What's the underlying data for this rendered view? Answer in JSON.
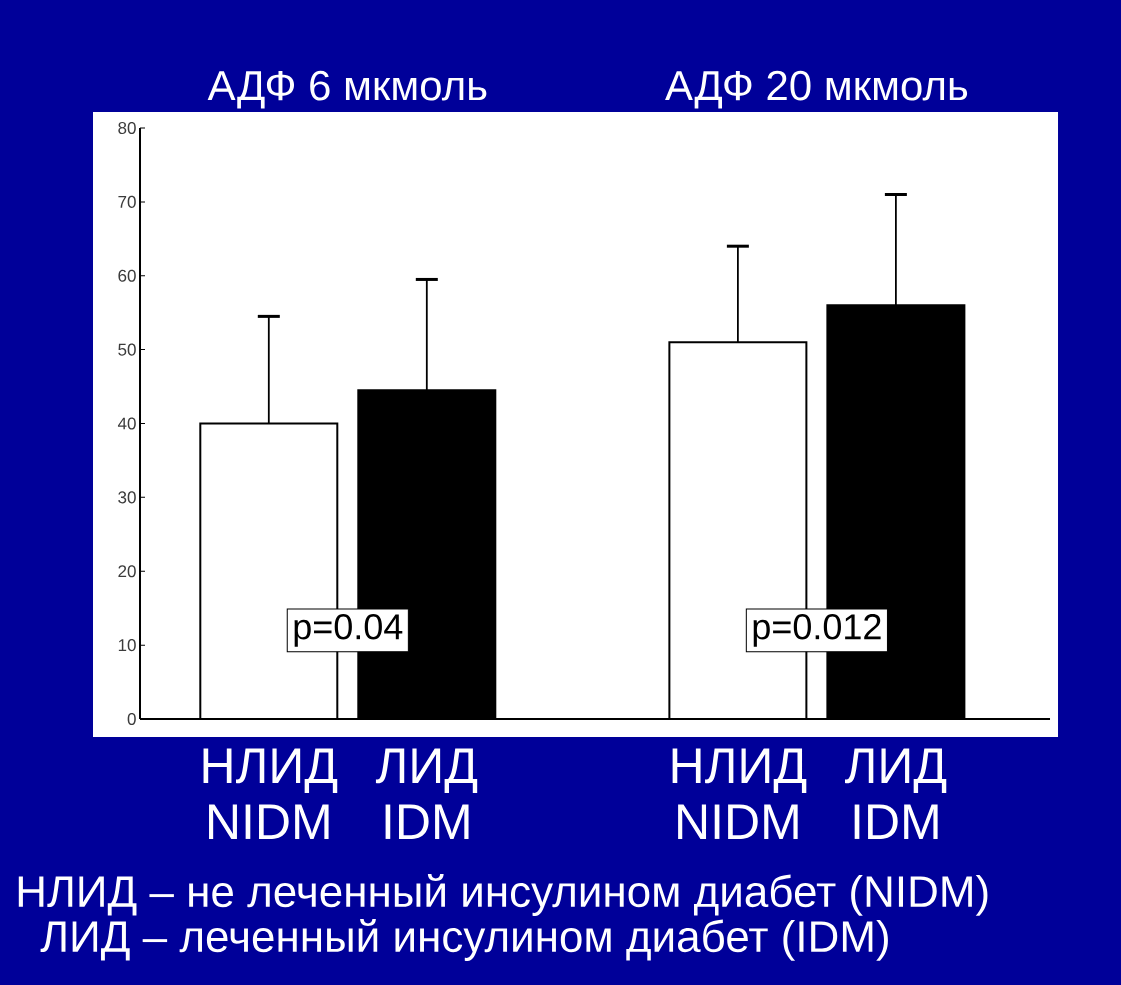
{
  "chart_data": {
    "type": "bar",
    "categories": [
      "АДФ 6 мкмоль",
      "АДФ 20 мкмоль"
    ],
    "series": [
      {
        "name": "НЛИД NIDM",
        "color": "#ffffff",
        "values": [
          40,
          51
        ],
        "errors": [
          [
            40,
            54.5
          ],
          [
            51,
            64
          ]
        ]
      },
      {
        "name": "ЛИД IDM",
        "color": "#000000",
        "values": [
          44.5,
          56
        ],
        "errors": [
          [
            44.5,
            59.5
          ],
          [
            56,
            71
          ]
        ]
      }
    ],
    "ylim": [
      0,
      80
    ],
    "yticks": [
      0,
      10,
      20,
      30,
      40,
      50,
      60,
      70,
      80
    ],
    "annotations": [
      "p=0.04",
      "p=0.012",
      "НЛИД – не леченный инсулином диабет (NIDM)",
      "ЛИД – леченный инсулином диабет (IDM)"
    ]
  }
}
